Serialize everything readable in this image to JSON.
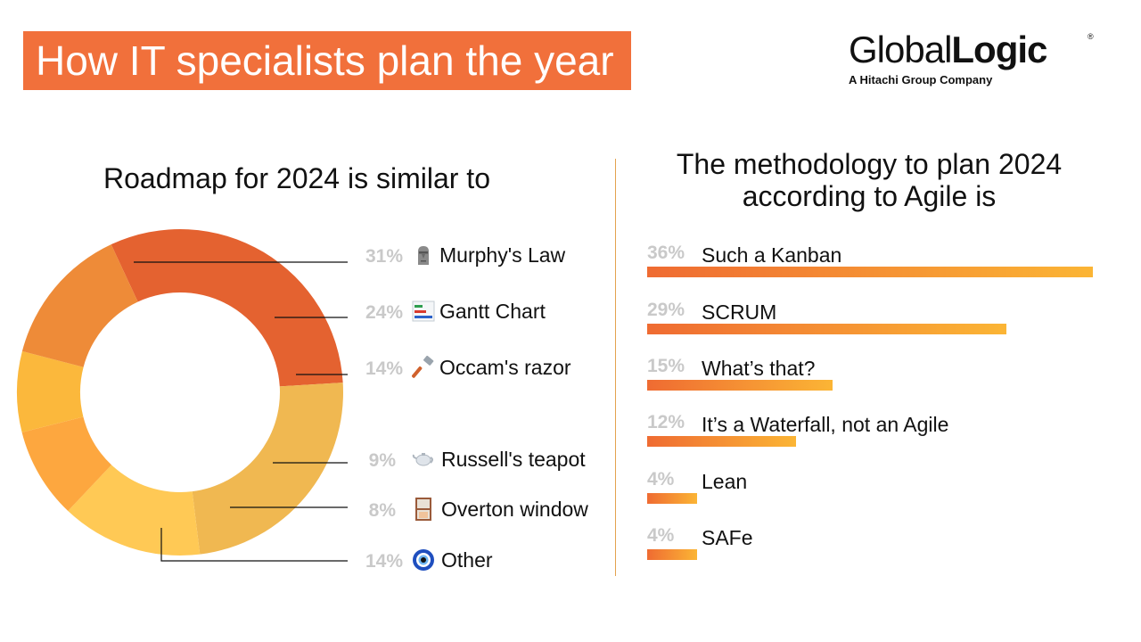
{
  "header": {
    "title": "How IT specialists plan the year"
  },
  "logo": {
    "word_regular": "Global",
    "word_bold": "Logic",
    "registered": "®",
    "tagline": "A Hitachi Group Company"
  },
  "chart_data": [
    {
      "type": "donut",
      "title": "Roadmap for 2024 is similar to",
      "start_angle_deg": -25,
      "slices": [
        {
          "label": "Murphy's Law",
          "pct_label": "31%",
          "value": 31,
          "color": "#e46230",
          "icon": "moai-icon"
        },
        {
          "label": "Gantt Chart",
          "pct_label": "24%",
          "value": 24,
          "color": "#f0b851",
          "icon": "gantt-chart-icon"
        },
        {
          "label": "Occam's razor",
          "pct_label": "14%",
          "value": 14,
          "color": "#ffc955",
          "icon": "razor-icon"
        },
        {
          "label": "Russell's teapot",
          "pct_label": "9%",
          "value": 9,
          "color": "#fda73f",
          "icon": "teapot-icon"
        },
        {
          "label": "Overton window",
          "pct_label": "8%",
          "value": 8,
          "color": "#fbb83c",
          "icon": "window-icon"
        },
        {
          "label": "Other",
          "pct_label": "14%",
          "value": 14,
          "color": "#ee8b38",
          "icon": "nazar-amulet-icon"
        }
      ]
    },
    {
      "type": "bar",
      "orientation": "horizontal",
      "title": "The methodology to plan 2024 according to Agile is",
      "xlim": [
        0,
        36
      ],
      "bars": [
        {
          "label": "Such a Kanban",
          "pct_label": "36%",
          "value": 36
        },
        {
          "label": "SCRUM",
          "pct_label": "29%",
          "value": 29
        },
        {
          "label": "What’s that?",
          "pct_label": "15%",
          "value": 15
        },
        {
          "label": "It’s a Waterfall, not an Agile",
          "pct_label": "12%",
          "value": 12
        },
        {
          "label": "Lean",
          "pct_label": "4%",
          "value": 4
        },
        {
          "label": "SAFe",
          "pct_label": "4%",
          "value": 4
        }
      ]
    }
  ]
}
